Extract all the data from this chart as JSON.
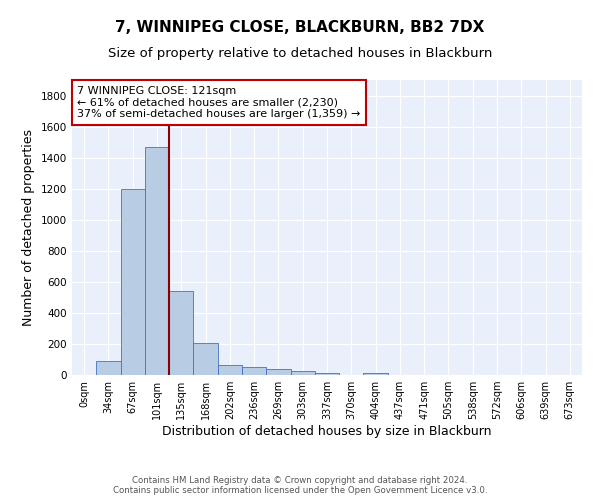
{
  "title": "7, WINNIPEG CLOSE, BLACKBURN, BB2 7DX",
  "subtitle": "Size of property relative to detached houses in Blackburn",
  "xlabel": "Distribution of detached houses by size in Blackburn",
  "ylabel": "Number of detached properties",
  "bin_labels": [
    "0sqm",
    "34sqm",
    "67sqm",
    "101sqm",
    "135sqm",
    "168sqm",
    "202sqm",
    "236sqm",
    "269sqm",
    "303sqm",
    "337sqm",
    "370sqm",
    "404sqm",
    "437sqm",
    "471sqm",
    "505sqm",
    "538sqm",
    "572sqm",
    "606sqm",
    "639sqm",
    "673sqm"
  ],
  "bin_values": [
    0,
    90,
    1200,
    1470,
    540,
    205,
    65,
    50,
    38,
    28,
    10,
    0,
    12,
    0,
    0,
    0,
    0,
    0,
    0,
    0,
    0
  ],
  "bar_color": "#b8cce4",
  "bar_edge_color": "#4472c4",
  "property_line_color": "#8b0000",
  "property_line_bin": 3,
  "annotation_text": "7 WINNIPEG CLOSE: 121sqm\n← 61% of detached houses are smaller (2,230)\n37% of semi-detached houses are larger (1,359) →",
  "annotation_box_color": "white",
  "annotation_box_edge_color": "#c00000",
  "ylim": [
    0,
    1900
  ],
  "yticks": [
    0,
    200,
    400,
    600,
    800,
    1000,
    1200,
    1400,
    1600,
    1800
  ],
  "background_color": "#eaf0fb",
  "grid_color": "#ffffff",
  "footer_line1": "Contains HM Land Registry data © Crown copyright and database right 2024.",
  "footer_line2": "Contains public sector information licensed under the Open Government Licence v3.0.",
  "title_fontsize": 11,
  "subtitle_fontsize": 9.5,
  "xlabel_fontsize": 9,
  "ylabel_fontsize": 9,
  "annotation_fontsize": 8,
  "tick_fontsize": 7
}
